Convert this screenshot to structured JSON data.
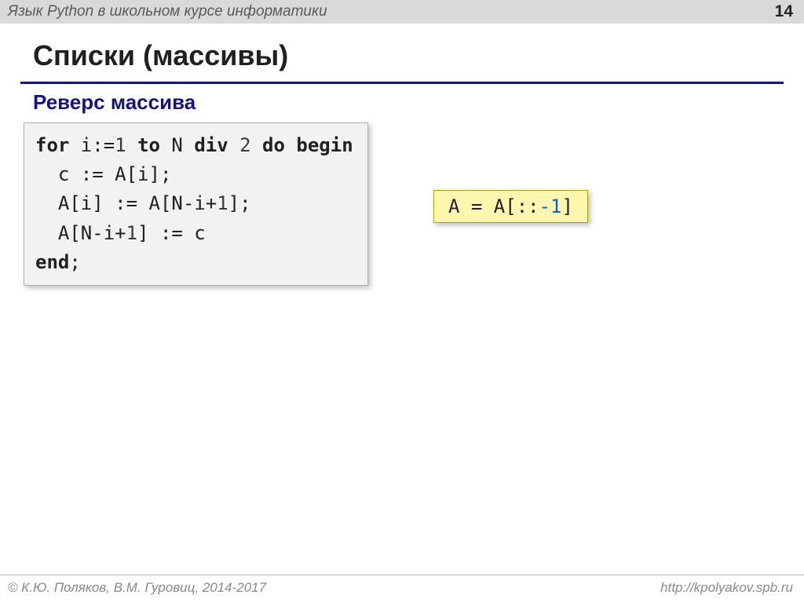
{
  "header": {
    "course_title": "Язык Python в школьном курсе информатики",
    "slide_number": "14"
  },
  "slide": {
    "title": "Списки (массивы)",
    "subtitle": "Реверс массива"
  },
  "pascal_code": {
    "tokens": [
      {
        "t": "kw",
        "v": "for"
      },
      {
        "t": "",
        "v": " i:="
      },
      {
        "t": "num",
        "v": "1"
      },
      {
        "t": "",
        "v": " "
      },
      {
        "t": "kw",
        "v": "to"
      },
      {
        "t": "",
        "v": " N "
      },
      {
        "t": "kw",
        "v": "div"
      },
      {
        "t": "",
        "v": " "
      },
      {
        "t": "num",
        "v": "2"
      },
      {
        "t": "",
        "v": " "
      },
      {
        "t": "kw",
        "v": "do"
      },
      {
        "t": "",
        "v": " "
      },
      {
        "t": "kw",
        "v": "begin"
      },
      {
        "t": "",
        "v": "\n  c := A[i];\n  A[i] := A[N-i+"
      },
      {
        "t": "num",
        "v": "1"
      },
      {
        "t": "",
        "v": "];\n  A[N-i+"
      },
      {
        "t": "num",
        "v": "1"
      },
      {
        "t": "",
        "v": "] := c\n"
      },
      {
        "t": "kw",
        "v": "end"
      },
      {
        "t": "",
        "v": ";"
      }
    ]
  },
  "python_code": {
    "prefix": "A = A[::",
    "neg": "-1",
    "suffix": "]"
  },
  "footer": {
    "copyright": "© К.Ю. Поляков, В.М. Гуровиц, 2014-2017",
    "url": "http://kpolyakov.spb.ru"
  },
  "styling": {
    "header_bg": "#d9d9d9",
    "title_underline_color": "#141480",
    "subtitle_color": "#141480",
    "code_bg": "#f2f2f2",
    "code_border": "#b0b0b0",
    "python_bg": "#fff7b0",
    "python_border": "#b0a000",
    "neg_color": "#0066cc",
    "code_fontsize": 24,
    "title_fontsize": 36,
    "subtitle_fontsize": 26
  }
}
